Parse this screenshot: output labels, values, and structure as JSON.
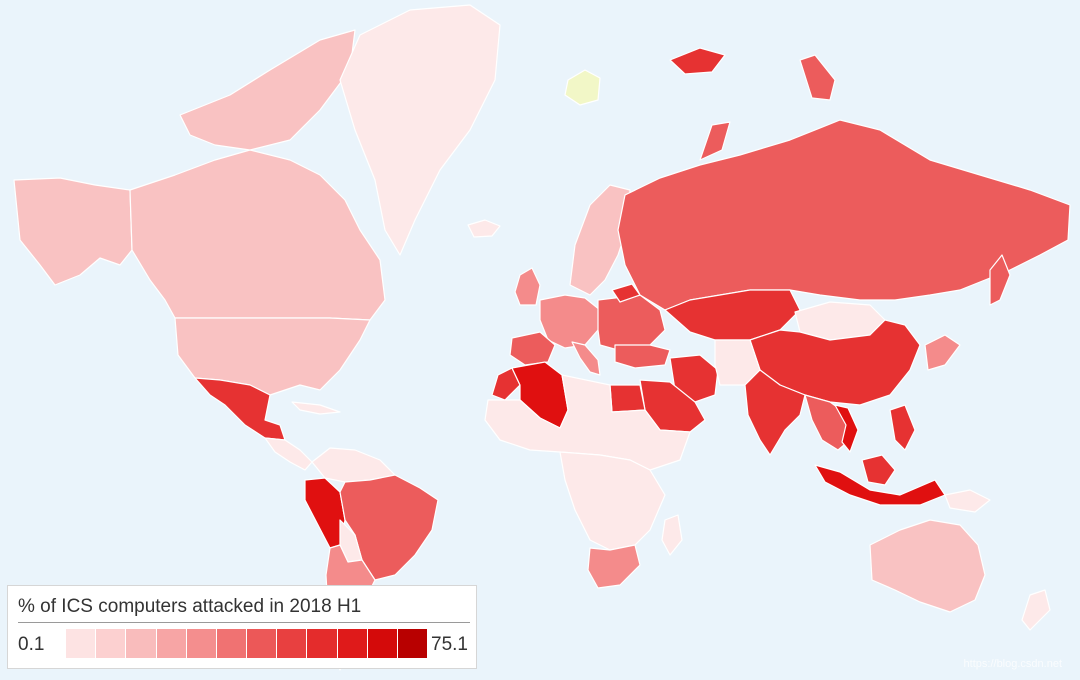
{
  "map": {
    "legend": {
      "title": "% of ICS computers attacked in 2018 H1",
      "min_label": "0.1",
      "max_label": "75.1",
      "scale_colors": [
        "#fde3e3",
        "#fcd0d0",
        "#f9bcbc",
        "#f7a5a5",
        "#f48e8e",
        "#f07272",
        "#ec5858",
        "#e84040",
        "#e42c2c",
        "#df1a1a",
        "#d40a0a",
        "#b80000"
      ]
    },
    "colors": {
      "ocean": "#eaf4fb",
      "very_low": "#fde9e9",
      "low": "#f9c2c2",
      "medium": "#f48b8b",
      "medium_high": "#ec5c5c",
      "high": "#e63232",
      "very_high": "#e01010",
      "no_data": "#f2f7c7"
    },
    "watermark": "https://blog.csdn.net"
  }
}
